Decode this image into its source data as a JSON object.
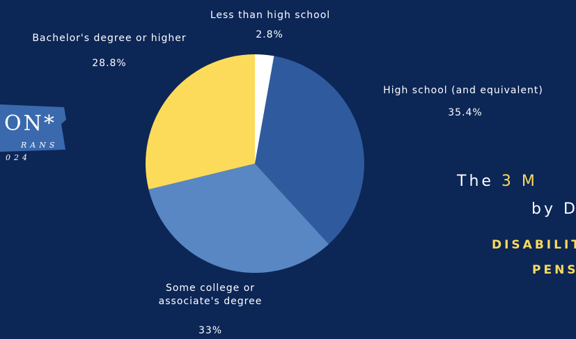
{
  "chart_data": {
    "type": "pie",
    "categories": [
      "Less than high school",
      "High school (and equivalent)",
      "Some college or associate's degree",
      "Bachelor's degree or higher"
    ],
    "values": [
      2.8,
      35.4,
      33,
      28.8
    ],
    "value_labels": [
      "2.8%",
      "35.4%",
      "33%",
      "28.8%"
    ],
    "colors": [
      "#ffffff",
      "#2f5b9e",
      "#5887c3",
      "#fcdb5b"
    ]
  },
  "side_text": {
    "logo_top": "ON*",
    "logo_middle": "RANS",
    "logo_bottom": "024",
    "heading_start": "The",
    "heading_highlight": "3 M",
    "heading_line2": "by D",
    "subheading_line1": "DISABILITY",
    "subheading_line2": "PENS"
  }
}
